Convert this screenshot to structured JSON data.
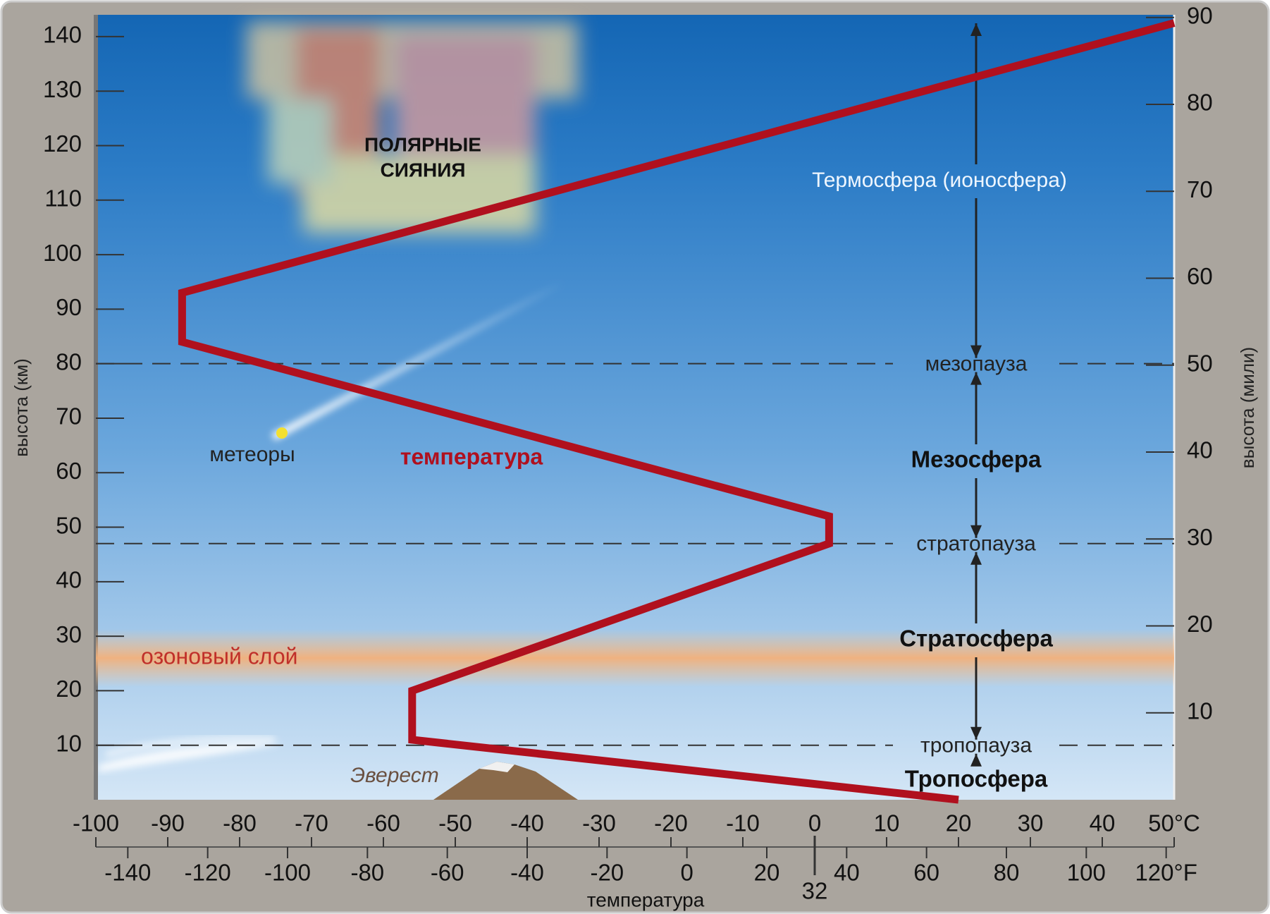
{
  "chart_data": {
    "type": "line",
    "xlabel": "температура",
    "ylabel": "высота (км)",
    "y2label": "высота (мили)",
    "xlim": [
      -100,
      50
    ],
    "xticks": [
      -100,
      -90,
      -80,
      -70,
      -60,
      -50,
      -40,
      -30,
      -20,
      -10,
      0,
      10,
      20,
      30,
      40,
      {
        "value": 50,
        "label": "50°C"
      }
    ],
    "x2lim": [
      -148,
      122
    ],
    "x2ticks": [
      -140,
      -120,
      -100,
      -80,
      -60,
      -40,
      -20,
      0,
      20,
      40,
      60,
      80,
      100,
      {
        "value": 120,
        "label": "120°F"
      }
    ],
    "x2_marker": 32,
    "ylim": [
      0,
      144
    ],
    "yticks": [
      10,
      20,
      30,
      40,
      50,
      60,
      70,
      80,
      90,
      100,
      110,
      120,
      130,
      140
    ],
    "y2lim": [
      0,
      90.3
    ],
    "y2ticks": [
      10,
      20,
      30,
      40,
      50,
      60,
      70,
      80,
      90
    ],
    "series": [
      {
        "name": "температура",
        "color": "#b0101e",
        "x": [
          20,
          -56,
          -56,
          2,
          2,
          -88,
          -88,
          50
        ],
        "values": [
          0,
          11,
          20,
          47,
          52,
          84,
          93,
          142.5
        ]
      }
    ],
    "boundaries": [
      {
        "label": "тропопауза",
        "value": 10
      },
      {
        "label": "стратопауза",
        "value": 47
      },
      {
        "label": "мезопауза",
        "value": 80
      }
    ],
    "layers": [
      {
        "name": "Тропосфера",
        "range": [
          0,
          10
        ]
      },
      {
        "name": "Стратосфера",
        "range": [
          10,
          47
        ]
      },
      {
        "name": "Мезосфера",
        "range": [
          47,
          80
        ]
      },
      {
        "name": "Термосфера (ионосфера)",
        "range": [
          80,
          144
        ]
      }
    ],
    "ozone_layer": {
      "label": "озоновый слой",
      "range": [
        22,
        30
      ]
    },
    "aurora": [
      "ПОЛЯРНЫЕ",
      "СИЯНИЯ"
    ],
    "meteors": "метеоры",
    "everest": "Эверест"
  }
}
